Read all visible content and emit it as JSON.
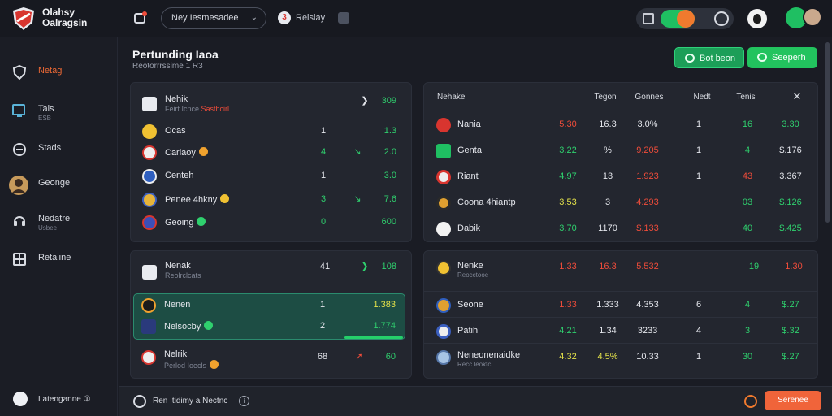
{
  "app": {
    "brand_line1": "Olahsy",
    "brand_line2": "Oalragsin",
    "league_select": "Ney Iesmesadee",
    "filter_label": "Reisiay",
    "filter_badge": "3"
  },
  "sidebar": {
    "items": [
      {
        "label": "Netag",
        "sub": "",
        "icon": "shield-icon",
        "active": true
      },
      {
        "label": "Tais",
        "sub": "ESB",
        "icon": "monitor-icon",
        "active": false
      },
      {
        "label": "Stads",
        "sub": "",
        "icon": "globe-icon",
        "active": false
      },
      {
        "label": "Geonge",
        "sub": "",
        "icon": "avatar-icon",
        "active": false
      },
      {
        "label": "Nedatre",
        "sub": "Usbee",
        "icon": "headset-icon",
        "active": false
      },
      {
        "label": "Retaline",
        "sub": "",
        "icon": "grid-icon",
        "active": false
      }
    ],
    "footer_label": "Latenganne ①"
  },
  "header": {
    "title": "Pertunding Iaoa",
    "subtitle": "Reotorrrssime 1 R3",
    "btn_outline": "Bot beon",
    "btn_solid": "Seeperh"
  },
  "card1": {
    "title": "Nehik",
    "title_sub": "Feirt Icnce",
    "title_sub2": "Sasthcirl",
    "title_value": "309",
    "rows": [
      {
        "name": "Ocas",
        "v1": "1",
        "arrow": "",
        "v2": "1.3",
        "v2color": "green"
      },
      {
        "name": "Carlaoy",
        "v1": "4",
        "arrow": "↘",
        "v2": "2.0",
        "v2color": "green"
      },
      {
        "name": "Centeh",
        "v1": "1",
        "arrow": "",
        "v2": "3.0",
        "v2color": "green"
      },
      {
        "name": "Penee 4hkny",
        "v1": "3",
        "arrow": "↘",
        "v2": "7.6",
        "v2color": "green"
      },
      {
        "name": "Geoing",
        "v1": "0",
        "arrow": "",
        "v2": "600",
        "v2color": "green"
      }
    ]
  },
  "card2": {
    "title": "Nenak",
    "title_sub": "Reolrclcats",
    "title_v1": "41",
    "title_value": "108",
    "rows": [
      {
        "name": "Nenen",
        "v1": "1",
        "v2": "1.383",
        "v2color": "yellow"
      },
      {
        "name": "Nelsocby",
        "v1": "2",
        "v2": "1.774",
        "v2color": "green"
      },
      {
        "name": "Nelrik",
        "sub": "Perlod Ioecls",
        "v1": "68",
        "v2": "60",
        "v2color": "green"
      }
    ]
  },
  "table1": {
    "headers": [
      "Nehake",
      "Tegon",
      "Gonnes",
      "Nedt",
      "Tenis"
    ],
    "rows": [
      {
        "name": "Nania",
        "a": "5.30",
        "ac": "red",
        "b": "16.3",
        "c": "3.0%",
        "cc": "white",
        "d": "1",
        "e": "16",
        "ec": "green",
        "f": "3.30",
        "fc": "green"
      },
      {
        "name": "Genta",
        "a": "3.22",
        "ac": "green",
        "b": "%",
        "c": "9.205",
        "cc": "red",
        "d": "1",
        "e": "4",
        "ec": "green",
        "f": "$.176",
        "fc": "white"
      },
      {
        "name": "Riant",
        "a": "4.97",
        "ac": "green",
        "b": "13",
        "c": "1.923",
        "cc": "red",
        "d": "1",
        "e": "43",
        "ec": "red",
        "f": "3.367",
        "fc": "white"
      },
      {
        "name": "Coona 4hiantp",
        "a": "3.53",
        "ac": "yellow",
        "b": "3",
        "c": "4.293",
        "cc": "red",
        "d": "",
        "e": "03",
        "ec": "green",
        "f": "$.126",
        "fc": "green"
      },
      {
        "name": "Dabik",
        "a": "3.70",
        "ac": "green",
        "b": "1170",
        "c": "$.133",
        "cc": "red",
        "d": "",
        "e": "40",
        "ec": "green",
        "f": "$.425",
        "fc": "green"
      }
    ]
  },
  "table2": {
    "header": {
      "name": "Nenke",
      "sub": "Reocctooe",
      "a": "1.33",
      "b": "16.3",
      "c": "5.532",
      "e": "19",
      "f": "1.30"
    },
    "rows": [
      {
        "name": "Seone",
        "sub": "",
        "a": "1.33",
        "ac": "red",
        "b": "1.333",
        "c": "4.353",
        "cc": "white",
        "d": "6",
        "e": "4",
        "ec": "green",
        "f": "$.27",
        "fc": "green"
      },
      {
        "name": "Patih",
        "sub": "",
        "a": "4.21",
        "ac": "green",
        "b": "1.34",
        "c": "3233",
        "cc": "white",
        "d": "4",
        "e": "3",
        "ec": "green",
        "f": "$.32",
        "fc": "green"
      },
      {
        "name": "Neneonenaidke",
        "sub": "Recc leoktc",
        "a": "4.32",
        "ac": "yellow",
        "b": "4.5%",
        "c": "10.33",
        "cc": "white",
        "d": "1",
        "e": "30",
        "ec": "green",
        "f": "$.27",
        "fc": "green"
      }
    ]
  },
  "bottombar": {
    "label": "Ren Itidimy a Nectnc",
    "btn": "Serenee"
  }
}
